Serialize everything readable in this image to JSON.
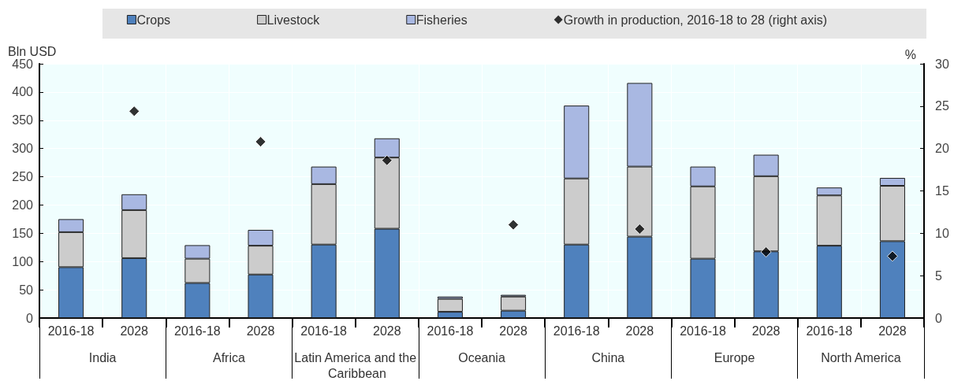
{
  "chart_data": {
    "type": "bar",
    "stacked": true,
    "categories": [
      "2016-18",
      "2028",
      "2016-18",
      "2028",
      "2016-18",
      "2028",
      "2016-18",
      "2028",
      "2016-18",
      "2028",
      "2016-18",
      "2028",
      "2016-18",
      "2028"
    ],
    "annotations": [
      "India",
      "Africa",
      "Latin America and the Caribbean",
      "Oceania",
      "China",
      "Europe",
      "North America"
    ],
    "ylabel": "Bln USD",
    "y2label": "%",
    "series": [
      {
        "name": "Crops",
        "color": "#4f81bd",
        "values": [
          90,
          106,
          62,
          77,
          130,
          158,
          11,
          13,
          130,
          144,
          105,
          118,
          128,
          136
        ]
      },
      {
        "name": "Livestock",
        "color": "#cccccc",
        "values": [
          62,
          85,
          43,
          51,
          107,
          126,
          23,
          25,
          117,
          124,
          128,
          133,
          89,
          98
        ]
      },
      {
        "name": "Fisheries",
        "color": "#a9b8e2",
        "values": [
          23,
          28,
          24,
          28,
          31,
          34,
          4,
          3,
          129,
          148,
          35,
          38,
          14,
          14
        ]
      },
      {
        "name": "Growth in production, 2016-18 to 28 (right axis)",
        "type": "scatter",
        "axis": "y2",
        "color": "#000000",
        "marker": "diamond",
        "values": [
          null,
          24.4,
          null,
          20.8,
          null,
          18.6,
          null,
          11.0,
          null,
          10.5,
          null,
          7.8,
          null,
          7.3
        ]
      }
    ],
    "ylim": [
      0,
      450
    ],
    "yticks": [
      0,
      50,
      100,
      150,
      200,
      250,
      300,
      350,
      400,
      450
    ],
    "y2lim": [
      0,
      30
    ],
    "y2ticks": [
      0,
      5,
      10,
      15,
      20,
      25,
      30
    ],
    "grid": true,
    "legend": "top"
  }
}
